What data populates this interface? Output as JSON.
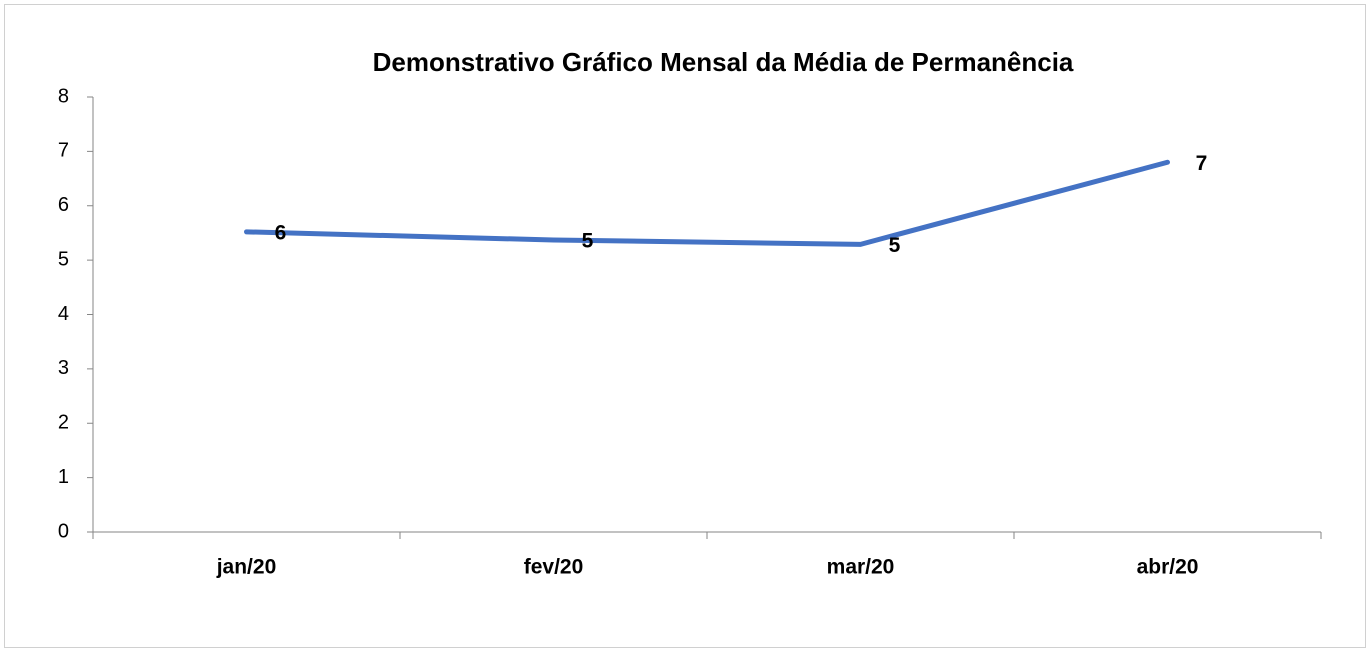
{
  "chart_data": {
    "type": "line",
    "title": "Demonstrativo Gráfico Mensal da Média de Permanência",
    "categories": [
      "jan/20",
      "fev/20",
      "mar/20",
      "abr/20"
    ],
    "series": [
      {
        "name": "Média de Permanência",
        "color": "#4472c4",
        "values": [
          5.52,
          5.37,
          5.29,
          6.8
        ],
        "value_labels": [
          "6",
          "5",
          "5",
          "7"
        ]
      }
    ],
    "ylim": [
      0,
      8
    ],
    "yticks": [
      0,
      1,
      2,
      3,
      4,
      5,
      6,
      7,
      8
    ],
    "grid": false,
    "legend": false
  }
}
